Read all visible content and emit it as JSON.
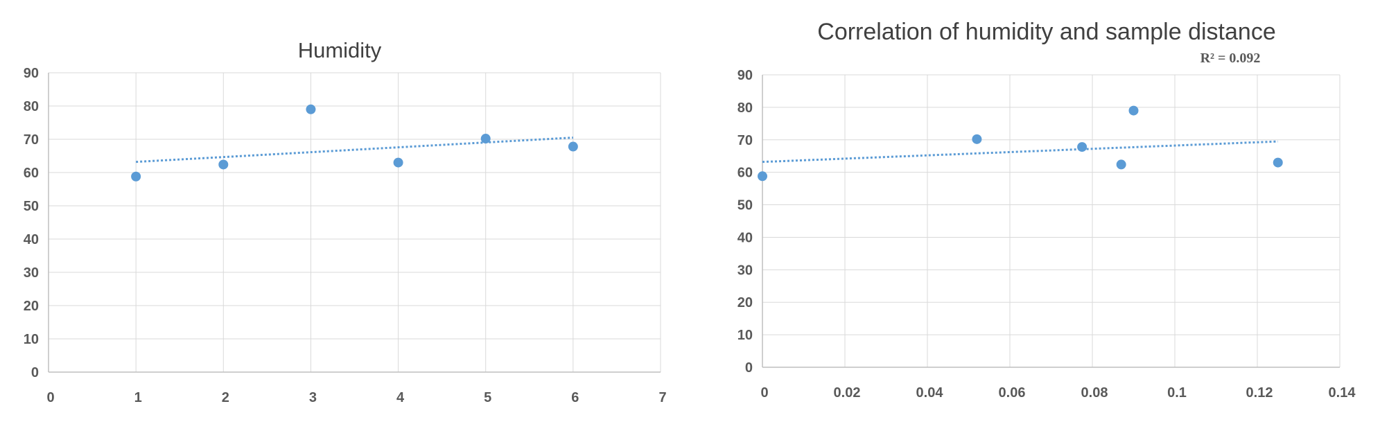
{
  "chart_data": [
    {
      "type": "scatter",
      "title": "Humidity",
      "x": [
        1,
        2,
        3,
        4,
        5,
        6
      ],
      "y": [
        58.8,
        62.4,
        79.0,
        63.0,
        70.2,
        67.8
      ],
      "xlim": [
        0,
        7
      ],
      "ylim": [
        0,
        90
      ],
      "xticks": [
        0,
        1,
        2,
        3,
        4,
        5,
        6,
        7
      ],
      "yticks": [
        0,
        10,
        20,
        30,
        40,
        50,
        60,
        70,
        80,
        90
      ],
      "trendline": {
        "type": "linear-dotted",
        "x": [
          1,
          6
        ],
        "y": [
          63.2,
          70.5
        ]
      },
      "grid": true,
      "marker_color": "#5B9BD5",
      "trend_color": "#5B9BD5"
    },
    {
      "type": "scatter",
      "title": "Correlation of humidity and sample distance",
      "annotation": "R² = 0.092",
      "x": [
        0,
        0.052,
        0.0775,
        0.087,
        0.09,
        0.125
      ],
      "y": [
        58.8,
        70.2,
        67.8,
        62.4,
        79.0,
        63.0
      ],
      "xlim": [
        0,
        0.14
      ],
      "ylim": [
        0,
        90
      ],
      "xticks": [
        "0",
        "0.02",
        "0.04",
        "0.06",
        "0.08",
        "0.1",
        "0.12",
        "0.14"
      ],
      "xtick_values": [
        0,
        0.02,
        0.04,
        0.06,
        0.08,
        0.1,
        0.12,
        0.14
      ],
      "yticks": [
        0,
        10,
        20,
        30,
        40,
        50,
        60,
        70,
        80,
        90
      ],
      "trendline": {
        "type": "linear-dotted",
        "x": [
          0,
          0.125
        ],
        "y": [
          63.2,
          69.5
        ]
      },
      "grid": true,
      "marker_color": "#5B9BD5",
      "trend_color": "#5B9BD5"
    }
  ]
}
